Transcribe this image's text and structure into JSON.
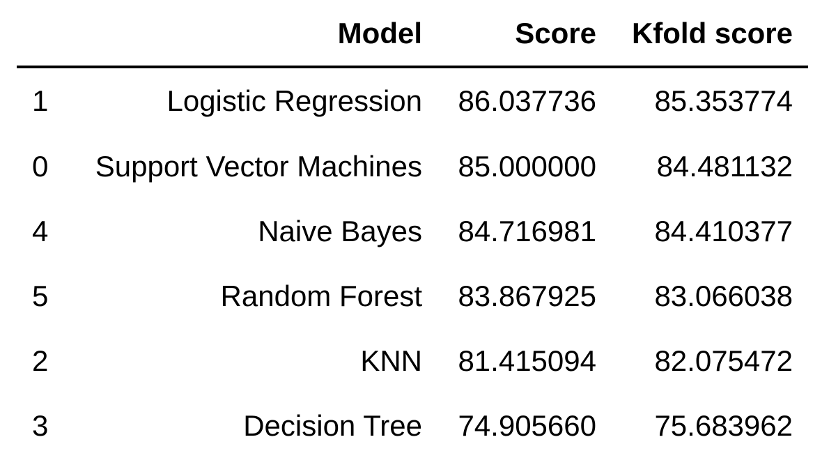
{
  "table": {
    "columns": {
      "index": "",
      "model": "Model",
      "score": "Score",
      "kfold": "Kfold score"
    },
    "rows": [
      {
        "index": "1",
        "model": "Logistic Regression",
        "score": "86.037736",
        "kfold": "85.353774"
      },
      {
        "index": "0",
        "model": "Support Vector Machines",
        "score": "85.000000",
        "kfold": "84.481132"
      },
      {
        "index": "4",
        "model": "Naive Bayes",
        "score": "84.716981",
        "kfold": "84.410377"
      },
      {
        "index": "5",
        "model": "Random Forest",
        "score": "83.867925",
        "kfold": "83.066038"
      },
      {
        "index": "2",
        "model": "KNN",
        "score": "81.415094",
        "kfold": "82.075472"
      },
      {
        "index": "3",
        "model": "Decision Tree",
        "score": "74.905660",
        "kfold": "75.683962"
      }
    ]
  }
}
